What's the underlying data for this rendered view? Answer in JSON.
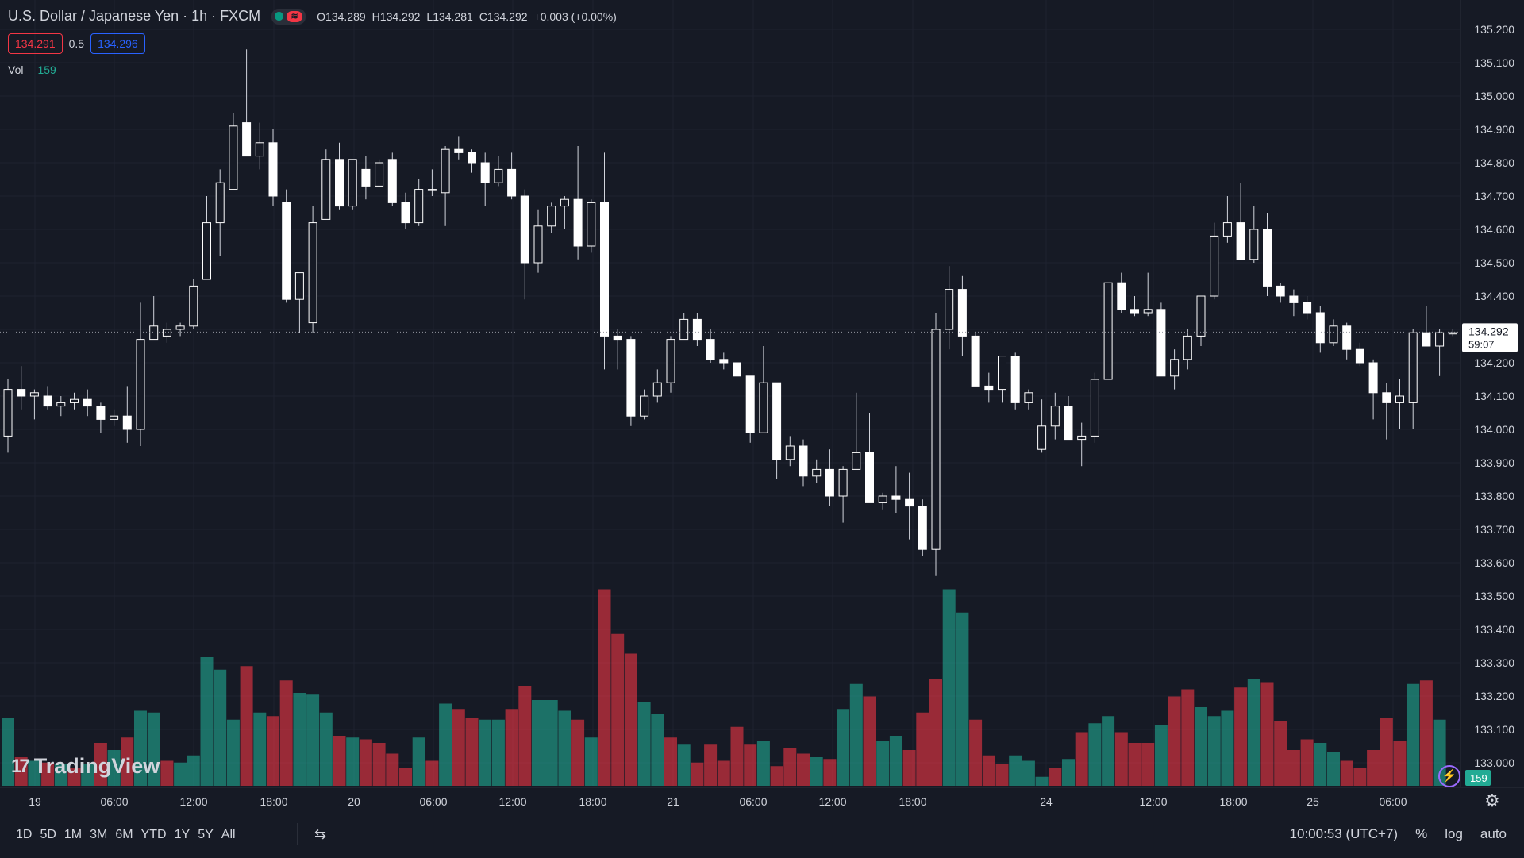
{
  "header": {
    "symbol": "U.S. Dollar / Japanese Yen · 1h · FXCM",
    "ohlc": {
      "o_label": "O",
      "o": "134.289",
      "h_label": "H",
      "h": "134.292",
      "l_label": "L",
      "l": "134.281",
      "c_label": "C",
      "c": "134.292",
      "change": "+0.003 (+0.00%)"
    },
    "sell_price": "134.291",
    "spread": "0.5",
    "buy_price": "134.296",
    "volume_label": "Vol",
    "volume_value": "159",
    "status_wave_glyph": "≋"
  },
  "logo": {
    "text": "TradingView",
    "mark": "17"
  },
  "price_scale": {
    "labels": [
      "135.200",
      "135.100",
      "135.000",
      "134.900",
      "134.800",
      "134.700",
      "134.600",
      "134.500",
      "134.400",
      "134.300",
      "134.200",
      "134.100",
      "134.000",
      "133.900",
      "133.800",
      "133.700",
      "133.600",
      "133.500",
      "133.400",
      "133.300",
      "133.200",
      "133.100",
      "133.000"
    ],
    "current_price": "134.292",
    "countdown": "59:07",
    "volume_badge": "159"
  },
  "time_axis": {
    "labels": [
      "19",
      "06:00",
      "12:00",
      "18:00",
      "20",
      "06:00",
      "12:00",
      "18:00",
      "21",
      "06:00",
      "12:00",
      "18:00",
      "24",
      "12:00",
      "18:00",
      "25",
      "06:00"
    ]
  },
  "bottom_toolbar": {
    "ranges": [
      "1D",
      "5D",
      "1M",
      "3M",
      "6M",
      "YTD",
      "1Y",
      "5Y",
      "All"
    ],
    "calendar_glyph": "⇆",
    "clock": "10:00:53 (UTC+7)",
    "percent": "%",
    "log": "log",
    "auto": "auto"
  },
  "icons": {
    "settings": "⚙",
    "bolt": "⚡"
  },
  "colors": {
    "background": "#161a25",
    "up_candle": "#ffffff",
    "down_candle": "#ffffff",
    "volume_up": "#22ab94",
    "volume_down": "#f23645",
    "sell": "#f23645",
    "buy": "#2962ff",
    "accent": "#9b6bff"
  },
  "chart_data": {
    "type": "candlestick",
    "title": "U.S. Dollar / Japanese Yen · 1h · FXCM",
    "ylim": [
      133.0,
      135.25
    ],
    "candles": [
      {
        "o": 133.98,
        "h": 134.15,
        "l": 133.93,
        "c": 134.12
      },
      {
        "o": 134.12,
        "h": 134.19,
        "l": 134.06,
        "c": 134.1
      },
      {
        "o": 134.1,
        "h": 134.12,
        "l": 134.03,
        "c": 134.11
      },
      {
        "o": 134.1,
        "h": 134.13,
        "l": 134.06,
        "c": 134.07
      },
      {
        "o": 134.07,
        "h": 134.1,
        "l": 134.04,
        "c": 134.08
      },
      {
        "o": 134.08,
        "h": 134.11,
        "l": 134.06,
        "c": 134.09
      },
      {
        "o": 134.09,
        "h": 134.12,
        "l": 134.04,
        "c": 134.07
      },
      {
        "o": 134.07,
        "h": 134.08,
        "l": 133.99,
        "c": 134.03
      },
      {
        "o": 134.03,
        "h": 134.06,
        "l": 134.01,
        "c": 134.04
      },
      {
        "o": 134.04,
        "h": 134.13,
        "l": 133.96,
        "c": 134.0
      },
      {
        "o": 134.0,
        "h": 134.38,
        "l": 133.95,
        "c": 134.27
      },
      {
        "o": 134.27,
        "h": 134.4,
        "l": 134.27,
        "c": 134.31
      },
      {
        "o": 134.28,
        "h": 134.32,
        "l": 134.26,
        "c": 134.3
      },
      {
        "o": 134.3,
        "h": 134.32,
        "l": 134.28,
        "c": 134.31
      },
      {
        "o": 134.31,
        "h": 134.45,
        "l": 134.3,
        "c": 134.43
      },
      {
        "o": 134.45,
        "h": 134.7,
        "l": 134.45,
        "c": 134.62
      },
      {
        "o": 134.62,
        "h": 134.78,
        "l": 134.52,
        "c": 134.74
      },
      {
        "o": 134.72,
        "h": 134.95,
        "l": 134.72,
        "c": 134.91
      },
      {
        "o": 134.92,
        "h": 135.14,
        "l": 134.82,
        "c": 134.82
      },
      {
        "o": 134.82,
        "h": 134.92,
        "l": 134.78,
        "c": 134.86
      },
      {
        "o": 134.86,
        "h": 134.9,
        "l": 134.67,
        "c": 134.7
      },
      {
        "o": 134.68,
        "h": 134.72,
        "l": 134.38,
        "c": 134.39
      },
      {
        "o": 134.39,
        "h": 134.47,
        "l": 134.29,
        "c": 134.47
      },
      {
        "o": 134.32,
        "h": 134.67,
        "l": 134.29,
        "c": 134.62
      },
      {
        "o": 134.63,
        "h": 134.84,
        "l": 134.63,
        "c": 134.81
      },
      {
        "o": 134.81,
        "h": 134.86,
        "l": 134.66,
        "c": 134.67
      },
      {
        "o": 134.67,
        "h": 134.81,
        "l": 134.66,
        "c": 134.81
      },
      {
        "o": 134.78,
        "h": 134.82,
        "l": 134.69,
        "c": 134.73
      },
      {
        "o": 134.73,
        "h": 134.81,
        "l": 134.73,
        "c": 134.8
      },
      {
        "o": 134.81,
        "h": 134.83,
        "l": 134.67,
        "c": 134.68
      },
      {
        "o": 134.68,
        "h": 134.71,
        "l": 134.6,
        "c": 134.62
      },
      {
        "o": 134.62,
        "h": 134.75,
        "l": 134.61,
        "c": 134.72
      },
      {
        "o": 134.72,
        "h": 134.78,
        "l": 134.7,
        "c": 134.72
      },
      {
        "o": 134.71,
        "h": 134.85,
        "l": 134.61,
        "c": 134.84
      },
      {
        "o": 134.84,
        "h": 134.88,
        "l": 134.81,
        "c": 134.83
      },
      {
        "o": 134.83,
        "h": 134.84,
        "l": 134.77,
        "c": 134.8
      },
      {
        "o": 134.8,
        "h": 134.83,
        "l": 134.67,
        "c": 134.74
      },
      {
        "o": 134.74,
        "h": 134.82,
        "l": 134.73,
        "c": 134.78
      },
      {
        "o": 134.78,
        "h": 134.83,
        "l": 134.69,
        "c": 134.7
      },
      {
        "o": 134.7,
        "h": 134.72,
        "l": 134.39,
        "c": 134.5
      },
      {
        "o": 134.5,
        "h": 134.66,
        "l": 134.47,
        "c": 134.61
      },
      {
        "o": 134.61,
        "h": 134.68,
        "l": 134.59,
        "c": 134.67
      },
      {
        "o": 134.67,
        "h": 134.7,
        "l": 134.6,
        "c": 134.69
      },
      {
        "o": 134.69,
        "h": 134.85,
        "l": 134.51,
        "c": 134.55
      },
      {
        "o": 134.55,
        "h": 134.69,
        "l": 134.53,
        "c": 134.68
      },
      {
        "o": 134.68,
        "h": 134.83,
        "l": 134.18,
        "c": 134.28
      },
      {
        "o": 134.28,
        "h": 134.3,
        "l": 134.18,
        "c": 134.27
      },
      {
        "o": 134.27,
        "h": 134.28,
        "l": 134.01,
        "c": 134.04
      },
      {
        "o": 134.04,
        "h": 134.12,
        "l": 134.03,
        "c": 134.1
      },
      {
        "o": 134.1,
        "h": 134.18,
        "l": 134.08,
        "c": 134.14
      },
      {
        "o": 134.14,
        "h": 134.28,
        "l": 134.11,
        "c": 134.27
      },
      {
        "o": 134.27,
        "h": 134.35,
        "l": 134.27,
        "c": 134.33
      },
      {
        "o": 134.33,
        "h": 134.35,
        "l": 134.25,
        "c": 134.27
      },
      {
        "o": 134.27,
        "h": 134.3,
        "l": 134.2,
        "c": 134.21
      },
      {
        "o": 134.21,
        "h": 134.23,
        "l": 134.18,
        "c": 134.2
      },
      {
        "o": 134.2,
        "h": 134.29,
        "l": 134.16,
        "c": 134.16
      },
      {
        "o": 134.16,
        "h": 134.16,
        "l": 133.96,
        "c": 133.99
      },
      {
        "o": 133.99,
        "h": 134.25,
        "l": 133.99,
        "c": 134.14
      },
      {
        "o": 134.14,
        "h": 134.14,
        "l": 133.85,
        "c": 133.91
      },
      {
        "o": 133.91,
        "h": 133.98,
        "l": 133.89,
        "c": 133.95
      },
      {
        "o": 133.95,
        "h": 133.97,
        "l": 133.83,
        "c": 133.86
      },
      {
        "o": 133.86,
        "h": 133.91,
        "l": 133.84,
        "c": 133.88
      },
      {
        "o": 133.88,
        "h": 133.94,
        "l": 133.77,
        "c": 133.8
      },
      {
        "o": 133.8,
        "h": 133.89,
        "l": 133.72,
        "c": 133.88
      },
      {
        "o": 133.88,
        "h": 134.11,
        "l": 133.88,
        "c": 133.93
      },
      {
        "o": 133.93,
        "h": 134.05,
        "l": 133.78,
        "c": 133.78
      },
      {
        "o": 133.78,
        "h": 133.81,
        "l": 133.76,
        "c": 133.8
      },
      {
        "o": 133.8,
        "h": 133.89,
        "l": 133.75,
        "c": 133.79
      },
      {
        "o": 133.79,
        "h": 133.87,
        "l": 133.67,
        "c": 133.77
      },
      {
        "o": 133.77,
        "h": 133.79,
        "l": 133.62,
        "c": 133.64
      },
      {
        "o": 133.64,
        "h": 134.35,
        "l": 133.56,
        "c": 134.3
      },
      {
        "o": 134.3,
        "h": 134.49,
        "l": 134.24,
        "c": 134.42
      },
      {
        "o": 134.42,
        "h": 134.46,
        "l": 134.22,
        "c": 134.28
      },
      {
        "o": 134.28,
        "h": 134.29,
        "l": 134.13,
        "c": 134.13
      },
      {
        "o": 134.13,
        "h": 134.17,
        "l": 134.08,
        "c": 134.12
      },
      {
        "o": 134.12,
        "h": 134.22,
        "l": 134.08,
        "c": 134.22
      },
      {
        "o": 134.22,
        "h": 134.23,
        "l": 134.06,
        "c": 134.08
      },
      {
        "o": 134.08,
        "h": 134.12,
        "l": 134.06,
        "c": 134.11
      },
      {
        "o": 133.94,
        "h": 134.09,
        "l": 133.93,
        "c": 134.01
      },
      {
        "o": 134.01,
        "h": 134.11,
        "l": 133.97,
        "c": 134.07
      },
      {
        "o": 134.07,
        "h": 134.1,
        "l": 133.97,
        "c": 133.97
      },
      {
        "o": 133.97,
        "h": 134.02,
        "l": 133.89,
        "c": 133.98
      },
      {
        "o": 133.98,
        "h": 134.17,
        "l": 133.96,
        "c": 134.15
      },
      {
        "o": 134.15,
        "h": 134.44,
        "l": 134.15,
        "c": 134.44
      },
      {
        "o": 134.44,
        "h": 134.47,
        "l": 134.35,
        "c": 134.36
      },
      {
        "o": 134.36,
        "h": 134.4,
        "l": 134.34,
        "c": 134.35
      },
      {
        "o": 134.35,
        "h": 134.47,
        "l": 134.34,
        "c": 134.36
      },
      {
        "o": 134.36,
        "h": 134.38,
        "l": 134.16,
        "c": 134.16
      },
      {
        "o": 134.16,
        "h": 134.24,
        "l": 134.12,
        "c": 134.21
      },
      {
        "o": 134.21,
        "h": 134.3,
        "l": 134.18,
        "c": 134.28
      },
      {
        "o": 134.28,
        "h": 134.4,
        "l": 134.25,
        "c": 134.4
      },
      {
        "o": 134.4,
        "h": 134.62,
        "l": 134.39,
        "c": 134.58
      },
      {
        "o": 134.58,
        "h": 134.7,
        "l": 134.56,
        "c": 134.62
      },
      {
        "o": 134.62,
        "h": 134.74,
        "l": 134.51,
        "c": 134.51
      },
      {
        "o": 134.51,
        "h": 134.67,
        "l": 134.5,
        "c": 134.6
      },
      {
        "o": 134.6,
        "h": 134.65,
        "l": 134.4,
        "c": 134.43
      },
      {
        "o": 134.43,
        "h": 134.44,
        "l": 134.38,
        "c": 134.4
      },
      {
        "o": 134.4,
        "h": 134.42,
        "l": 134.34,
        "c": 134.38
      },
      {
        "o": 134.38,
        "h": 134.4,
        "l": 134.33,
        "c": 134.35
      },
      {
        "o": 134.35,
        "h": 134.37,
        "l": 134.23,
        "c": 134.26
      },
      {
        "o": 134.26,
        "h": 134.33,
        "l": 134.25,
        "c": 134.31
      },
      {
        "o": 134.31,
        "h": 134.32,
        "l": 134.21,
        "c": 134.24
      },
      {
        "o": 134.24,
        "h": 134.26,
        "l": 134.19,
        "c": 134.2
      },
      {
        "o": 134.2,
        "h": 134.21,
        "l": 134.03,
        "c": 134.11
      },
      {
        "o": 134.11,
        "h": 134.14,
        "l": 133.97,
        "c": 134.08
      },
      {
        "o": 134.08,
        "h": 134.15,
        "l": 134.0,
        "c": 134.1
      },
      {
        "o": 134.08,
        "h": 134.3,
        "l": 134.0,
        "c": 134.29
      },
      {
        "o": 134.29,
        "h": 134.37,
        "l": 134.25,
        "c": 134.25
      },
      {
        "o": 134.25,
        "h": 134.3,
        "l": 134.16,
        "c": 134.29
      },
      {
        "o": 134.29,
        "h": 134.3,
        "l": 134.28,
        "c": 134.29
      }
    ],
    "volume": [
      {
        "v": 38,
        "d": "up"
      },
      {
        "v": 16,
        "d": "down"
      },
      {
        "v": 14,
        "d": "up"
      },
      {
        "v": 13,
        "d": "down"
      },
      {
        "v": 12,
        "d": "up"
      },
      {
        "v": 10,
        "d": "down"
      },
      {
        "v": 12,
        "d": "up"
      },
      {
        "v": 24,
        "d": "down"
      },
      {
        "v": 20,
        "d": "up"
      },
      {
        "v": 27,
        "d": "down"
      },
      {
        "v": 42,
        "d": "up"
      },
      {
        "v": 41,
        "d": "up"
      },
      {
        "v": 14,
        "d": "down"
      },
      {
        "v": 13,
        "d": "up"
      },
      {
        "v": 17,
        "d": "up"
      },
      {
        "v": 72,
        "d": "up"
      },
      {
        "v": 65,
        "d": "up"
      },
      {
        "v": 37,
        "d": "up"
      },
      {
        "v": 67,
        "d": "down"
      },
      {
        "v": 41,
        "d": "up"
      },
      {
        "v": 39,
        "d": "down"
      },
      {
        "v": 59,
        "d": "down"
      },
      {
        "v": 52,
        "d": "up"
      },
      {
        "v": 51,
        "d": "up"
      },
      {
        "v": 41,
        "d": "up"
      },
      {
        "v": 28,
        "d": "down"
      },
      {
        "v": 27,
        "d": "up"
      },
      {
        "v": 26,
        "d": "down"
      },
      {
        "v": 24,
        "d": "down"
      },
      {
        "v": 18,
        "d": "down"
      },
      {
        "v": 10,
        "d": "down"
      },
      {
        "v": 27,
        "d": "up"
      },
      {
        "v": 14,
        "d": "down"
      },
      {
        "v": 46,
        "d": "up"
      },
      {
        "v": 43,
        "d": "down"
      },
      {
        "v": 38,
        "d": "down"
      },
      {
        "v": 37,
        "d": "up"
      },
      {
        "v": 37,
        "d": "up"
      },
      {
        "v": 43,
        "d": "down"
      },
      {
        "v": 56,
        "d": "down"
      },
      {
        "v": 48,
        "d": "up"
      },
      {
        "v": 48,
        "d": "up"
      },
      {
        "v": 42,
        "d": "up"
      },
      {
        "v": 37,
        "d": "down"
      },
      {
        "v": 27,
        "d": "up"
      },
      {
        "v": 110,
        "d": "down"
      },
      {
        "v": 85,
        "d": "down"
      },
      {
        "v": 74,
        "d": "down"
      },
      {
        "v": 47,
        "d": "up"
      },
      {
        "v": 40,
        "d": "up"
      },
      {
        "v": 27,
        "d": "down"
      },
      {
        "v": 23,
        "d": "up"
      },
      {
        "v": 13,
        "d": "down"
      },
      {
        "v": 23,
        "d": "down"
      },
      {
        "v": 14,
        "d": "down"
      },
      {
        "v": 33,
        "d": "down"
      },
      {
        "v": 23,
        "d": "down"
      },
      {
        "v": 25,
        "d": "up"
      },
      {
        "v": 11,
        "d": "down"
      },
      {
        "v": 21,
        "d": "down"
      },
      {
        "v": 18,
        "d": "down"
      },
      {
        "v": 16,
        "d": "up"
      },
      {
        "v": 15,
        "d": "down"
      },
      {
        "v": 43,
        "d": "up"
      },
      {
        "v": 57,
        "d": "up"
      },
      {
        "v": 50,
        "d": "down"
      },
      {
        "v": 25,
        "d": "up"
      },
      {
        "v": 28,
        "d": "up"
      },
      {
        "v": 20,
        "d": "down"
      },
      {
        "v": 41,
        "d": "down"
      },
      {
        "v": 60,
        "d": "down"
      },
      {
        "v": 110,
        "d": "up"
      },
      {
        "v": 97,
        "d": "up"
      },
      {
        "v": 37,
        "d": "down"
      },
      {
        "v": 17,
        "d": "down"
      },
      {
        "v": 12,
        "d": "down"
      },
      {
        "v": 17,
        "d": "up"
      },
      {
        "v": 14,
        "d": "up"
      },
      {
        "v": 5,
        "d": "up"
      },
      {
        "v": 10,
        "d": "down"
      },
      {
        "v": 15,
        "d": "up"
      },
      {
        "v": 30,
        "d": "down"
      },
      {
        "v": 35,
        "d": "up"
      },
      {
        "v": 39,
        "d": "up"
      },
      {
        "v": 30,
        "d": "down"
      },
      {
        "v": 24,
        "d": "down"
      },
      {
        "v": 24,
        "d": "down"
      },
      {
        "v": 34,
        "d": "up"
      },
      {
        "v": 50,
        "d": "down"
      },
      {
        "v": 54,
        "d": "down"
      },
      {
        "v": 44,
        "d": "up"
      },
      {
        "v": 39,
        "d": "up"
      },
      {
        "v": 42,
        "d": "up"
      },
      {
        "v": 55,
        "d": "down"
      },
      {
        "v": 60,
        "d": "up"
      },
      {
        "v": 58,
        "d": "down"
      },
      {
        "v": 36,
        "d": "down"
      },
      {
        "v": 20,
        "d": "down"
      },
      {
        "v": 26,
        "d": "down"
      },
      {
        "v": 24,
        "d": "up"
      },
      {
        "v": 19,
        "d": "up"
      },
      {
        "v": 14,
        "d": "down"
      },
      {
        "v": 10,
        "d": "down"
      },
      {
        "v": 20,
        "d": "down"
      },
      {
        "v": 38,
        "d": "down"
      },
      {
        "v": 25,
        "d": "down"
      },
      {
        "v": 57,
        "d": "up"
      },
      {
        "v": 59,
        "d": "down"
      },
      {
        "v": 37,
        "d": "up"
      }
    ]
  }
}
